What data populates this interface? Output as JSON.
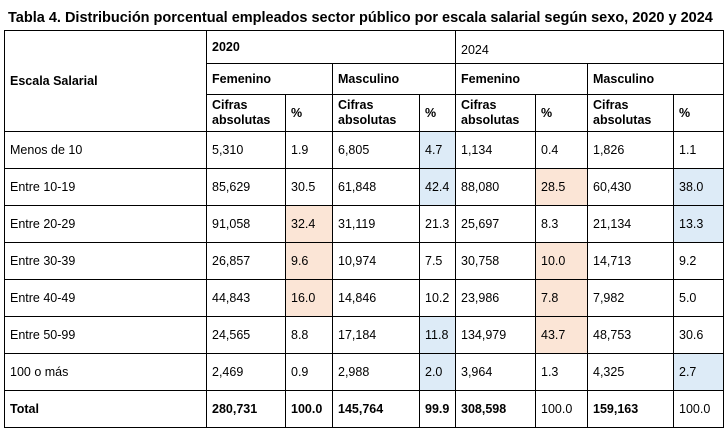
{
  "title": "Tabla 4. Distribución porcentual  empleados sector público por escala salarial según sexo, 2020 y 2024",
  "header": {
    "row_label": "Escala Salarial",
    "year1": "2020",
    "year2": "2024",
    "female": "Femenino",
    "male": "Masculino",
    "abs_label": "Cifras absolutas",
    "pct_label": "%"
  },
  "highlight_colors": {
    "orange": "#fbe5d6",
    "blue": "#ddebf7"
  },
  "rows": [
    {
      "label": "Menos de 10",
      "f20_abs": "5,310",
      "f20_pct": "1.9",
      "m20_abs": "6,805",
      "m20_pct": "4.7",
      "f24_abs": "1,134",
      "f24_pct": "0.4",
      "m24_abs": "1,826",
      "m24_pct": "1.1"
    },
    {
      "label": "Entre 10-19",
      "f20_abs": "85,629",
      "f20_pct": "30.5",
      "m20_abs": "61,848",
      "m20_pct": "42.4",
      "f24_abs": "88,080",
      "f24_pct": "28.5",
      "m24_abs": "60,430",
      "m24_pct": "38.0"
    },
    {
      "label": "Entre 20-29",
      "f20_abs": "91,058",
      "f20_pct": "32.4",
      "m20_abs": "31,119",
      "m20_pct": "21.3",
      "f24_abs": "25,697",
      "f24_pct": "8.3",
      "m24_abs": "21,134",
      "m24_pct": "13.3"
    },
    {
      "label": "Entre 30-39",
      "f20_abs": "26,857",
      "f20_pct": "9.6",
      "m20_abs": "10,974",
      "m20_pct": "7.5",
      "f24_abs": "30,758",
      "f24_pct": "10.0",
      "m24_abs": "14,713",
      "m24_pct": "9.2"
    },
    {
      "label": "Entre 40-49",
      "f20_abs": "44,843",
      "f20_pct": "16.0",
      "m20_abs": "14,846",
      "m20_pct": "10.2",
      "f24_abs": "23,986",
      "f24_pct": "7.8",
      "m24_abs": "7,982",
      "m24_pct": "5.0"
    },
    {
      "label": "Entre 50-99",
      "f20_abs": "24,565",
      "f20_pct": "8.8",
      "m20_abs": "17,184",
      "m20_pct": "11.8",
      "f24_abs": "134,979",
      "f24_pct": "43.7",
      "m24_abs": "48,753",
      "m24_pct": "30.6"
    },
    {
      "label": "100 o más",
      "f20_abs": "2,469",
      "f20_pct": "0.9",
      "m20_abs": "2,988",
      "m20_pct": "2.0",
      "f24_abs": "3,964",
      "f24_pct": "1.3",
      "m24_abs": "4,325",
      "m24_pct": "2.7"
    }
  ],
  "total": {
    "label": "Total",
    "f20_abs": "280,731",
    "f20_pct": "100.0",
    "m20_abs": "145,764",
    "m20_pct": "99.9",
    "f24_abs": "308,598",
    "f24_pct": "100.0",
    "m24_abs": "159,163",
    "m24_pct": "100.0"
  }
}
